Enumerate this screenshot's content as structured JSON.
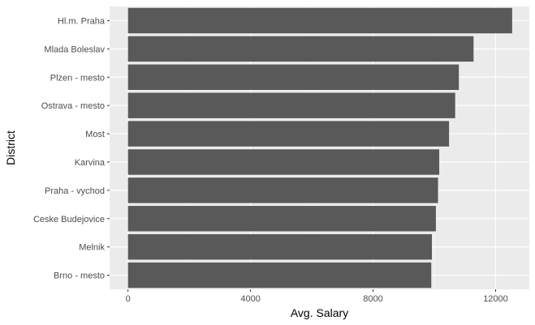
{
  "chart_data": {
    "type": "bar",
    "orientation": "horizontal",
    "title": "",
    "xlabel": "Avg. Salary",
    "ylabel": "District",
    "categories": [
      "Hl.m. Praha",
      "Mlada Boleslav",
      "Plzen - mesto",
      "Ostrava - mesto",
      "Most",
      "Karvina",
      "Praha - vychod",
      "Ceske Budejovice",
      "Melnik",
      "Brno - mesto"
    ],
    "values": [
      12540,
      11280,
      10800,
      10680,
      10480,
      10160,
      10120,
      10050,
      9920,
      9900
    ],
    "xlim": [
      -600,
      13100
    ],
    "xticks": [
      0,
      4000,
      8000,
      12000
    ],
    "grid": true,
    "colors": {
      "panel": "#ebebeb",
      "grid_major": "#ffffff",
      "bar": "#595959",
      "tick": "#333333"
    }
  }
}
